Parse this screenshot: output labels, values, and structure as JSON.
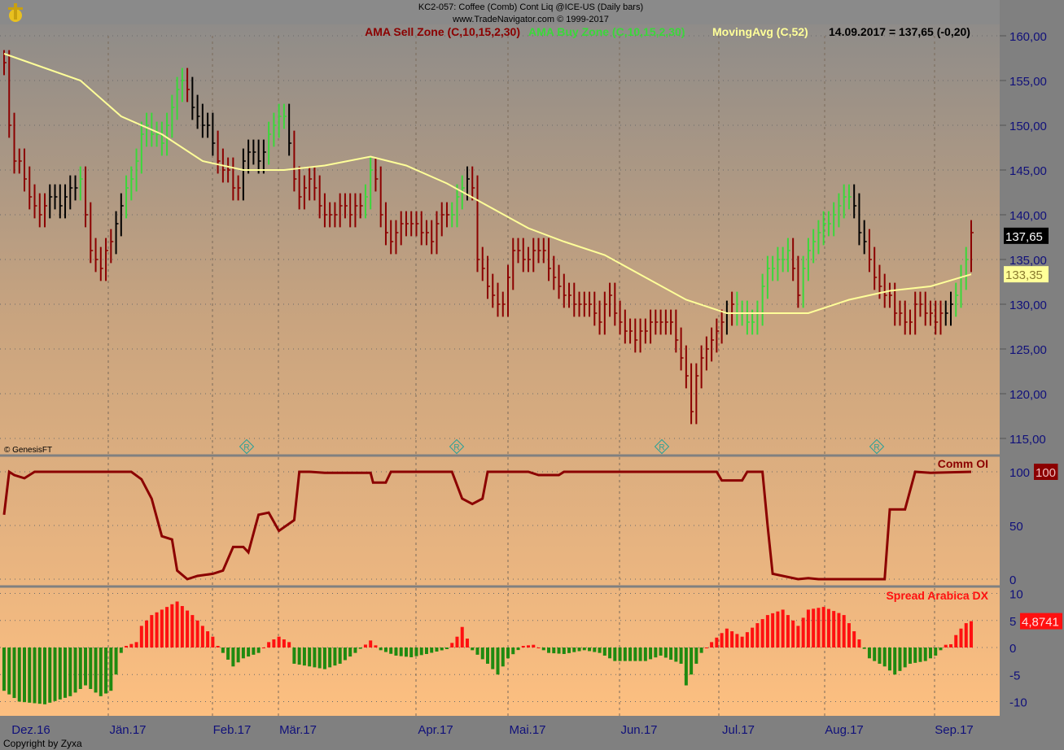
{
  "header": {
    "title": "KC2-057:  Coffee (Comb) Cont Liq @ICE-US  (Daily bars)",
    "copyright_line": "www.TradeNavigator.com © 1999-2017",
    "legend": {
      "sell_zone": "AMA Sell Zone (C,10,15,2,30)",
      "buy_zone": "AMA Buy Zone (C,10,15,2,30)",
      "moving_avg": "MovingAvg (C,52)",
      "last_value": "14.09.2017 = 137,65 (-0,20)"
    },
    "logo": "anchor-logo"
  },
  "footer": {
    "copyright": "Copyright by Zyxa",
    "watermark": "© GenesisFT"
  },
  "colors": {
    "sell": "#8b0000",
    "buy": "#3ad83a",
    "neutral": "#000000",
    "moving_avg": "#ffff99",
    "comm_oi": "#8b0000",
    "dx_pos": "#ff1010",
    "dx_neg": "#1f8a10",
    "axis_text": "#10107a"
  },
  "chart_data": [
    {
      "type": "bar",
      "name": "price",
      "ylim": [
        115,
        160
      ],
      "yticks": [
        "115,00",
        "120,00",
        "125,00",
        "130,00",
        "135,00",
        "140,00",
        "145,00",
        "150,00",
        "155,00",
        "160,00"
      ],
      "last_price_label": "137,65",
      "ma_label": "133,35",
      "close": [
        157,
        150,
        146,
        146,
        144,
        142,
        141,
        140,
        141,
        142,
        142,
        141,
        142,
        143,
        143,
        144,
        140,
        136,
        135,
        134,
        136,
        137,
        139,
        141,
        143,
        144,
        146,
        149,
        150,
        149,
        149,
        148,
        150,
        152,
        154,
        155,
        154,
        152,
        151,
        150,
        150,
        148,
        146,
        145,
        145,
        143,
        143,
        146,
        147,
        147,
        146,
        147,
        149,
        150,
        151,
        151,
        148,
        144,
        142,
        143,
        144,
        143,
        141,
        140,
        140,
        140,
        141,
        141,
        140,
        141,
        141,
        142,
        145,
        144,
        140,
        138,
        137,
        138,
        139,
        139,
        139,
        139,
        138,
        138,
        137,
        139,
        140,
        140,
        140,
        142,
        143,
        144,
        143,
        135,
        134,
        132,
        131,
        130,
        130,
        133,
        136,
        136,
        135,
        135,
        136,
        136,
        136,
        134,
        133,
        132,
        131,
        131,
        130,
        130,
        130,
        130,
        129,
        128,
        130,
        131,
        129,
        128,
        127,
        127,
        126,
        127,
        127,
        128,
        128,
        128,
        128,
        128,
        126,
        124,
        122,
        118,
        122,
        124,
        125,
        126,
        127,
        128,
        129,
        130,
        129,
        129,
        128,
        128,
        129,
        132,
        134,
        134,
        135,
        135,
        136,
        134,
        131,
        134,
        136,
        137,
        138,
        139,
        139,
        140,
        141,
        142,
        142,
        141,
        138,
        137,
        135,
        133,
        132,
        131,
        131,
        129,
        129,
        128,
        128,
        130,
        130,
        129,
        129,
        128,
        129,
        129,
        130,
        131,
        133,
        135,
        138
      ],
      "buy_zone_bars": [
        [
          15,
          15
        ],
        [
          24,
          35
        ],
        [
          52,
          55
        ],
        [
          71,
          72
        ],
        [
          88,
          90
        ],
        [
          144,
          154
        ],
        [
          157,
          166
        ],
        [
          187,
          189
        ]
      ],
      "neutral_bars": [
        [
          9,
          14
        ],
        [
          22,
          23
        ],
        [
          37,
          41
        ],
        [
          47,
          51
        ],
        [
          56,
          56
        ],
        [
          91,
          91
        ],
        [
          142,
          142
        ],
        [
          167,
          169
        ],
        [
          185,
          186
        ]
      ],
      "moving_avg": [
        [
          0,
          158
        ],
        [
          15,
          155
        ],
        [
          23,
          151
        ],
        [
          31,
          149
        ],
        [
          39,
          146
        ],
        [
          47,
          145
        ],
        [
          55,
          145
        ],
        [
          63,
          145.5
        ],
        [
          72,
          146.5
        ],
        [
          79,
          145.5
        ],
        [
          87,
          143.5
        ],
        [
          95,
          141
        ],
        [
          103,
          138.5
        ],
        [
          110,
          137
        ],
        [
          118,
          135.5
        ],
        [
          126,
          133
        ],
        [
          134,
          130.5
        ],
        [
          142,
          129
        ],
        [
          150,
          129
        ],
        [
          158,
          129
        ],
        [
          166,
          130.5
        ],
        [
          174,
          131.5
        ],
        [
          182,
          132
        ],
        [
          190,
          133.35
        ]
      ]
    },
    {
      "type": "line",
      "name": "Comm OI",
      "ylim": [
        0,
        100
      ],
      "yticks": [
        "0",
        "50",
        "100"
      ],
      "last_label": "100",
      "points": [
        [
          0,
          60
        ],
        [
          1,
          100
        ],
        [
          2,
          97
        ],
        [
          4,
          94
        ],
        [
          6,
          100
        ],
        [
          16,
          100
        ],
        [
          25,
          100
        ],
        [
          27,
          93
        ],
        [
          29,
          75
        ],
        [
          31,
          40
        ],
        [
          33,
          37
        ],
        [
          34,
          8
        ],
        [
          36,
          0
        ],
        [
          38,
          3
        ],
        [
          41,
          5
        ],
        [
          43,
          8
        ],
        [
          45,
          30
        ],
        [
          47,
          30
        ],
        [
          48,
          25
        ],
        [
          50,
          60
        ],
        [
          52,
          62
        ],
        [
          54,
          45
        ],
        [
          57,
          55
        ],
        [
          58,
          100
        ],
        [
          60,
          100
        ],
        [
          63,
          99
        ],
        [
          72,
          99
        ],
        [
          72.5,
          90
        ],
        [
          75,
          90
        ],
        [
          76,
          100
        ],
        [
          88,
          100
        ],
        [
          90,
          75
        ],
        [
          92,
          70
        ],
        [
          94,
          75
        ],
        [
          95,
          100
        ],
        [
          103,
          100
        ],
        [
          105,
          97
        ],
        [
          109,
          97
        ],
        [
          110,
          100
        ],
        [
          140,
          100
        ],
        [
          141,
          92
        ],
        [
          145,
          92
        ],
        [
          146,
          100
        ],
        [
          149,
          100
        ],
        [
          150,
          50
        ],
        [
          151,
          5
        ],
        [
          156,
          0
        ],
        [
          158,
          1
        ],
        [
          160,
          0
        ],
        [
          173,
          0
        ],
        [
          174,
          65
        ],
        [
          177,
          65
        ],
        [
          179,
          100
        ],
        [
          182,
          99
        ],
        [
          190,
          100
        ]
      ]
    },
    {
      "type": "bar",
      "name": "Spread Arabica DX",
      "ylim": [
        -12,
        10
      ],
      "yticks": [
        "-10",
        "-5",
        "0",
        "5",
        "10"
      ],
      "last_label": "4,8741",
      "points": [
        [
          0,
          -8
        ],
        [
          3,
          -10
        ],
        [
          8,
          -10.5
        ],
        [
          13,
          -9
        ],
        [
          16,
          -7
        ],
        [
          19,
          -9
        ],
        [
          21,
          -8
        ],
        [
          22,
          -5
        ],
        [
          23,
          -1
        ],
        [
          24,
          0.3
        ],
        [
          26,
          1
        ],
        [
          27,
          4
        ],
        [
          29,
          6
        ],
        [
          31,
          7
        ],
        [
          34,
          8.5
        ],
        [
          37,
          6
        ],
        [
          39,
          4
        ],
        [
          41,
          2
        ],
        [
          42,
          0.3
        ],
        [
          43,
          -1
        ],
        [
          45,
          -3.5
        ],
        [
          47,
          -2
        ],
        [
          50,
          -1
        ],
        [
          52,
          1
        ],
        [
          54,
          2
        ],
        [
          56,
          1
        ],
        [
          57,
          -3
        ],
        [
          60,
          -3.5
        ],
        [
          63,
          -4
        ],
        [
          66,
          -3
        ],
        [
          69,
          -1
        ],
        [
          72,
          1.3
        ],
        [
          74,
          -0.5
        ],
        [
          77,
          -1.5
        ],
        [
          80,
          -1.8
        ],
        [
          83,
          -1.2
        ],
        [
          87,
          -0.3
        ],
        [
          89,
          2
        ],
        [
          90,
          3.8
        ],
        [
          92,
          -0.5
        ],
        [
          95,
          -3
        ],
        [
          97,
          -5
        ],
        [
          99,
          -2
        ],
        [
          102,
          0.3
        ],
        [
          104,
          0.5
        ],
        [
          107,
          -1
        ],
        [
          110,
          -1.2
        ],
        [
          114,
          -0.5
        ],
        [
          117,
          -1
        ],
        [
          120,
          -2.5
        ],
        [
          123,
          -2.5
        ],
        [
          126,
          -2.5
        ],
        [
          129,
          -1.5
        ],
        [
          133,
          -3
        ],
        [
          134,
          -7
        ],
        [
          137,
          -1
        ],
        [
          139,
          1
        ],
        [
          142,
          3.5
        ],
        [
          145,
          2
        ],
        [
          148,
          4.5
        ],
        [
          150,
          6
        ],
        [
          153,
          7
        ],
        [
          156,
          4
        ],
        [
          158,
          7
        ],
        [
          161,
          7.5
        ],
        [
          165,
          6
        ],
        [
          168,
          1.5
        ],
        [
          170,
          -2
        ],
        [
          173,
          -3.5
        ],
        [
          175,
          -5
        ],
        [
          178,
          -3
        ],
        [
          181,
          -2.5
        ],
        [
          183,
          -1.5
        ],
        [
          185,
          0.5
        ],
        [
          186,
          0.6
        ],
        [
          187,
          2.3
        ],
        [
          188,
          3.5
        ],
        [
          189,
          4.5
        ],
        [
          190,
          4.87
        ]
      ]
    }
  ],
  "x_axis": {
    "labels": [
      "Dez.16",
      "Jän.17",
      "Feb.17",
      "Mär.17",
      "Apr.17",
      "Mai.17",
      "Jun.17",
      "Jul.17",
      "Aug.17",
      "Sep.17"
    ]
  },
  "markers": {
    "label": "R",
    "count": 4
  }
}
